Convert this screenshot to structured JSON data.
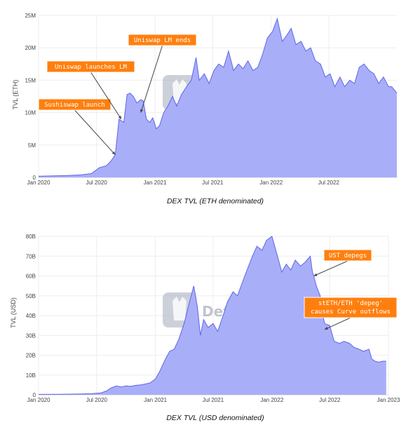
{
  "watermark": "DefiLlama",
  "colors": {
    "area_fill": "#a9aef8",
    "line": "#5e66e8",
    "annotation_bg": "#ff7f0e",
    "grid": "#eeeeee"
  },
  "chart_data": [
    {
      "type": "area",
      "title": "DEX TVL (ETH denominated)",
      "xlabel": "",
      "ylabel": "TVL (ETH)",
      "xlim": [
        "2020-01-01",
        "2023-01-31"
      ],
      "ylim": [
        0,
        25000000
      ],
      "yticks": [
        0,
        5000000,
        10000000,
        15000000,
        20000000,
        25000000
      ],
      "yticklabels": [
        "0",
        "5M",
        "10M",
        "15M",
        "20M",
        "25M"
      ],
      "xticks": [
        "2020-01-01",
        "2020-07-01",
        "2021-01-01",
        "2021-07-01",
        "2022-01-01",
        "2022-07-01"
      ],
      "xticklabels": [
        "Jan 2020",
        "Jul 2020",
        "Jan 2021",
        "Jul 2021",
        "Jan 2022",
        "Jul 2022"
      ],
      "grid": true,
      "x": [
        "2020-01-01",
        "2020-02-15",
        "2020-04-01",
        "2020-05-15",
        "2020-06-15",
        "2020-07-10",
        "2020-08-01",
        "2020-08-15",
        "2020-08-29",
        "2020-09-10",
        "2020-09-25",
        "2020-10-05",
        "2020-10-15",
        "2020-10-25",
        "2020-11-05",
        "2020-11-17",
        "2020-11-25",
        "2020-12-05",
        "2020-12-15",
        "2020-12-25",
        "2021-01-05",
        "2021-01-15",
        "2021-01-28",
        "2021-02-10",
        "2021-02-25",
        "2021-03-10",
        "2021-03-25",
        "2021-04-10",
        "2021-04-25",
        "2021-05-10",
        "2021-05-20",
        "2021-06-05",
        "2021-06-20",
        "2021-07-05",
        "2021-07-20",
        "2021-08-05",
        "2021-08-20",
        "2021-09-05",
        "2021-09-20",
        "2021-10-05",
        "2021-10-20",
        "2021-11-05",
        "2021-11-20",
        "2021-12-05",
        "2021-12-20",
        "2022-01-05",
        "2022-01-20",
        "2022-02-05",
        "2022-02-20",
        "2022-03-05",
        "2022-03-20",
        "2022-04-05",
        "2022-04-20",
        "2022-05-05",
        "2022-05-20",
        "2022-06-05",
        "2022-06-20",
        "2022-07-05",
        "2022-07-20",
        "2022-08-05",
        "2022-08-20",
        "2022-09-05",
        "2022-09-20",
        "2022-10-05",
        "2022-10-20",
        "2022-11-05",
        "2022-11-20",
        "2022-12-05",
        "2022-12-20",
        "2023-01-05",
        "2023-01-15",
        "2023-01-31"
      ],
      "values": [
        200000,
        250000,
        300000,
        400000,
        600000,
        1500000,
        1800000,
        2500000,
        3500000,
        9000000,
        8500000,
        12800000,
        13000000,
        12500000,
        11500000,
        12000000,
        11800000,
        9000000,
        8500000,
        9200000,
        7500000,
        8000000,
        10000000,
        11000000,
        12500000,
        11000000,
        12800000,
        14000000,
        15000000,
        18500000,
        15000000,
        16000000,
        14500000,
        16500000,
        17500000,
        17000000,
        19500000,
        16500000,
        17500000,
        16800000,
        18000000,
        16500000,
        17000000,
        19000000,
        21500000,
        22500000,
        24500000,
        21000000,
        22000000,
        23000000,
        20500000,
        21000000,
        19500000,
        20000000,
        18000000,
        17500000,
        15500000,
        16000000,
        14000000,
        15500000,
        14000000,
        15000000,
        14500000,
        17000000,
        17500000,
        16500000,
        16000000,
        14500000,
        15500000,
        14000000,
        14000000,
        13000000
      ],
      "annotations": [
        {
          "text": "Sushiswap launch",
          "x": "2020-08-29",
          "y": 3500000
        },
        {
          "text": "Uniswap launches LM",
          "x": "2020-09-17",
          "y": 9000000
        },
        {
          "text": "Uniswap LM ends",
          "x": "2020-11-17",
          "y": 10000000
        }
      ]
    },
    {
      "type": "area",
      "title": "DEX TVL (USD denominated)",
      "xlabel": "",
      "ylabel": "TVL (USD)",
      "xlim": [
        "2020-01-01",
        "2023-01-01"
      ],
      "ylim": [
        0,
        80000000000
      ],
      "yticks": [
        0,
        10000000000,
        20000000000,
        30000000000,
        40000000000,
        50000000000,
        60000000000,
        70000000000,
        80000000000
      ],
      "yticklabels": [
        "0",
        "10B",
        "20B",
        "30B",
        "40B",
        "50B",
        "60B",
        "70B",
        "80B"
      ],
      "xticks": [
        "2020-01-01",
        "2020-07-01",
        "2021-01-01",
        "2021-07-01",
        "2022-01-01",
        "2022-07-01",
        "2023-01-01"
      ],
      "xticklabels": [
        "Jan 2020",
        "Jul 2020",
        "Jan 2021",
        "Jul 2021",
        "Jan 2022",
        "Jul 2022",
        "Jan 2023"
      ],
      "grid": true,
      "x": [
        "2020-01-01",
        "2020-03-01",
        "2020-05-01",
        "2020-06-15",
        "2020-07-15",
        "2020-08-01",
        "2020-08-15",
        "2020-09-01",
        "2020-09-15",
        "2020-10-01",
        "2020-10-15",
        "2020-11-01",
        "2020-11-15",
        "2020-12-01",
        "2020-12-15",
        "2021-01-01",
        "2021-01-15",
        "2021-02-01",
        "2021-02-15",
        "2021-03-01",
        "2021-03-15",
        "2021-04-01",
        "2021-04-15",
        "2021-05-01",
        "2021-05-12",
        "2021-05-22",
        "2021-06-01",
        "2021-06-15",
        "2021-07-01",
        "2021-07-15",
        "2021-08-01",
        "2021-08-15",
        "2021-09-01",
        "2021-09-15",
        "2021-10-01",
        "2021-10-15",
        "2021-11-01",
        "2021-11-15",
        "2021-12-01",
        "2021-12-15",
        "2022-01-01",
        "2022-01-15",
        "2022-02-01",
        "2022-02-15",
        "2022-03-01",
        "2022-03-15",
        "2022-04-01",
        "2022-04-15",
        "2022-05-01",
        "2022-05-08",
        "2022-05-12",
        "2022-05-20",
        "2022-06-01",
        "2022-06-10",
        "2022-06-15",
        "2022-07-01",
        "2022-07-15",
        "2022-08-01",
        "2022-08-15",
        "2022-09-01",
        "2022-09-15",
        "2022-10-01",
        "2022-10-15",
        "2022-11-01",
        "2022-11-10",
        "2022-11-20",
        "2022-12-01",
        "2022-12-15",
        "2022-12-25"
      ],
      "values": [
        200000000,
        300000000,
        400000000,
        600000000,
        1000000000,
        2000000000,
        3500000000,
        4500000000,
        4000000000,
        4500000000,
        4300000000,
        4800000000,
        5000000000,
        5500000000,
        6000000000,
        8000000000,
        12000000000,
        18000000000,
        22000000000,
        23000000000,
        28000000000,
        36000000000,
        45000000000,
        55000000000,
        45000000000,
        30000000000,
        38000000000,
        34000000000,
        36000000000,
        32000000000,
        40000000000,
        47000000000,
        52000000000,
        50000000000,
        57000000000,
        63000000000,
        70000000000,
        75000000000,
        73000000000,
        78000000000,
        80000000000,
        72000000000,
        62000000000,
        66000000000,
        63000000000,
        68000000000,
        65000000000,
        67000000000,
        70000000000,
        62000000000,
        60000000000,
        55000000000,
        50000000000,
        40000000000,
        36000000000,
        35000000000,
        27000000000,
        26000000000,
        27000000000,
        26000000000,
        24000000000,
        23000000000,
        22000000000,
        23000000000,
        18000000000,
        17000000000,
        16500000000,
        17000000000,
        17000000000
      ],
      "annotations": [
        {
          "text": "UST depegs",
          "x": "2022-05-12",
          "y": 60000000000
        },
        {
          "text": "stETH/ETH 'depeg'",
          "text2": "causes Curve outflows",
          "x": "2022-06-15",
          "y": 33000000000
        }
      ]
    }
  ]
}
